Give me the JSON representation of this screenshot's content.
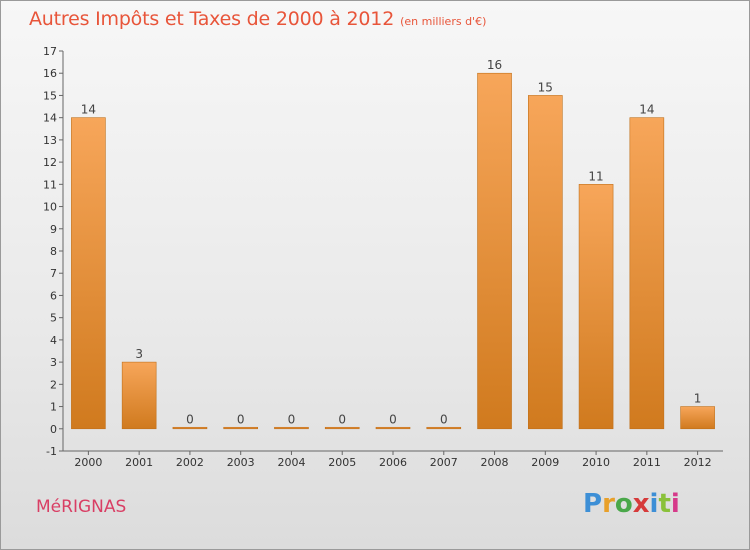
{
  "header": {
    "title": "Autres Impôts et Taxes de 2000 à 2012",
    "unit": "(en milliers d'€)"
  },
  "commune": "MéRIGNAS",
  "logo": {
    "text": "Proxiti",
    "letters": [
      "P",
      "r",
      "o",
      "x",
      "i",
      "t",
      "i"
    ],
    "colors": [
      "#3d8fd6",
      "#e8a02a",
      "#4aa84a",
      "#d63a3a",
      "#3d8fd6",
      "#8ac13a",
      "#d63a8a"
    ]
  },
  "colors": {
    "bar_light": "#f7a65a",
    "bar_dark": "#d07a1e",
    "title": "#e8553a",
    "commune": "#d93e64"
  },
  "chart_data": {
    "type": "bar",
    "title": "Autres Impôts et Taxes de 2000 à 2012",
    "subtitle": "(en milliers d'€)",
    "categories": [
      "2000",
      "2001",
      "2002",
      "2003",
      "2004",
      "2005",
      "2006",
      "2007",
      "2008",
      "2009",
      "2010",
      "2011",
      "2012"
    ],
    "values": [
      14,
      3,
      0,
      0,
      0,
      0,
      0,
      0,
      16,
      15,
      11,
      14,
      1
    ],
    "data_labels": [
      "14",
      "3",
      "0",
      "0",
      "0",
      "0",
      "0",
      "0",
      "16",
      "15",
      "11",
      "14",
      "1"
    ],
    "yticks": [
      "-1",
      "0",
      "1",
      "2",
      "3",
      "4",
      "5",
      "6",
      "7",
      "8",
      "9",
      "10",
      "11",
      "12",
      "13",
      "14",
      "15",
      "16",
      "17"
    ],
    "ylim": [
      -1,
      17
    ],
    "grid": false,
    "legend": "none"
  }
}
